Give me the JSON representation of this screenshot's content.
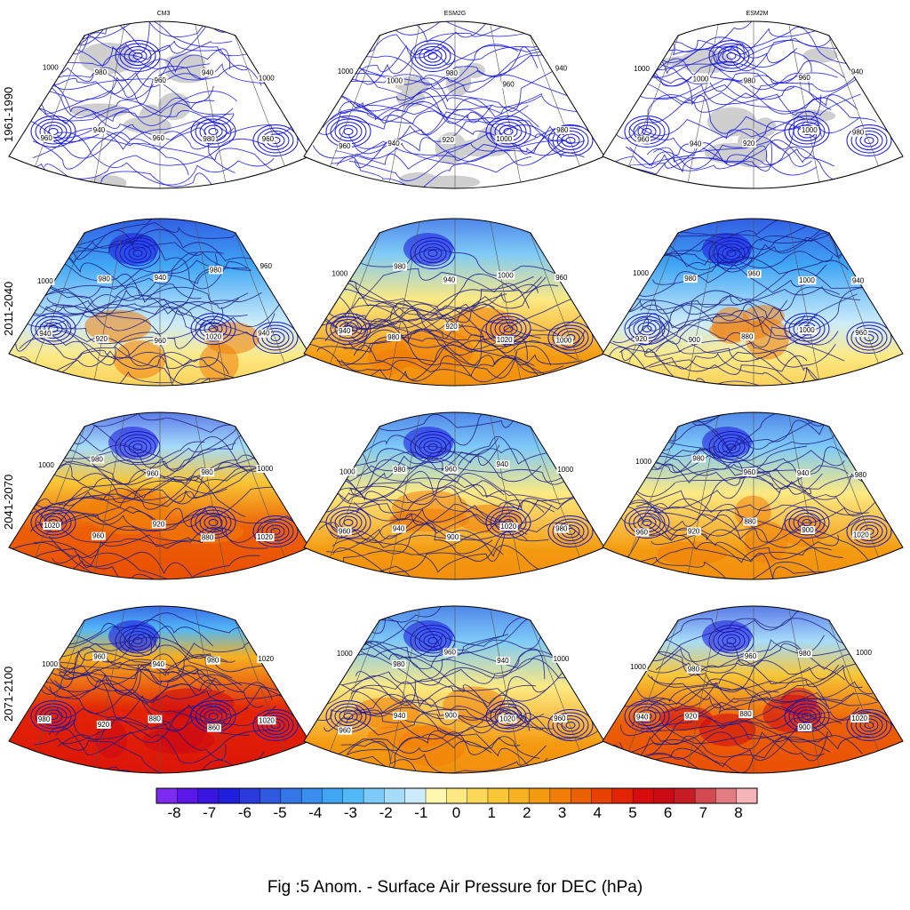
{
  "columns": [
    "CM3",
    "ESM2G",
    "ESM2M"
  ],
  "rows": [
    "1961-1990",
    "2011-2040",
    "2041-2070",
    "2071-2100"
  ],
  "colorbar": {
    "ticks": [
      "-8",
      "-7",
      "-6",
      "-5",
      "-4",
      "-3",
      "-2",
      "-1",
      "0",
      "1",
      "2",
      "3",
      "4",
      "5",
      "6",
      "7",
      "8"
    ],
    "colors": [
      "#7b2cf0",
      "#5a18e8",
      "#3a14e0",
      "#2020dc",
      "#2a3adc",
      "#2f5ae0",
      "#3576e6",
      "#3a8eee",
      "#40a6f4",
      "#52b8f6",
      "#7ecaf8",
      "#a6dcfa",
      "#ccecfb",
      "#fff7b0",
      "#fde982",
      "#fbd85a",
      "#f9c636",
      "#f6b020",
      "#f49a10",
      "#f07e08",
      "#ec6004",
      "#e84202",
      "#e22404",
      "#d80c0c",
      "#cc0a14",
      "#c81c24",
      "#d24a50",
      "#e07c82",
      "#f4b4b8"
    ],
    "values": [
      -8,
      -7,
      -6,
      -5,
      -4,
      -3,
      -2,
      -1,
      0,
      1,
      2,
      3,
      4,
      5,
      6,
      7,
      8
    ]
  },
  "contour_labels": {
    "r0c0": [
      "1000",
      "980",
      "960",
      "940",
      "1000",
      "960",
      "940",
      "960",
      "980",
      "960"
    ],
    "r0c1": [
      "1000",
      "1000",
      "980",
      "960",
      "940",
      "960",
      "940",
      "920",
      "1000",
      "980"
    ],
    "r0c2": [
      "1000",
      "1000",
      "980",
      "960",
      "940",
      "960",
      "940",
      "920",
      "1000",
      "980"
    ],
    "r1c0": [
      "1000",
      "980",
      "940",
      "980",
      "960",
      "940",
      "920",
      "960",
      "1020",
      "940"
    ],
    "r1c1": [
      "1000",
      "980",
      "940",
      "1000",
      "960",
      "940",
      "980",
      "920",
      "1020",
      "1000"
    ],
    "r1c2": [
      "1000",
      "980",
      "960",
      "1000",
      "940",
      "920",
      "900",
      "880",
      "1000",
      "960"
    ],
    "r2c0": [
      "1000",
      "980",
      "960",
      "980",
      "1000",
      "1020",
      "960",
      "920",
      "880",
      "1020"
    ],
    "r2c1": [
      "1000",
      "980",
      "960",
      "940",
      "1000",
      "960",
      "940",
      "900",
      "1020",
      "980"
    ],
    "r2c2": [
      "1000",
      "980",
      "960",
      "940",
      "980",
      "960",
      "920",
      "880",
      "900",
      "1020"
    ],
    "r3c0": [
      "1000",
      "960",
      "940",
      "980",
      "1020",
      "980",
      "920",
      "880",
      "860",
      "1020"
    ],
    "r3c1": [
      "1000",
      "980",
      "960",
      "940",
      "1000",
      "960",
      "940",
      "900",
      "1020",
      "960"
    ],
    "r3c2": [
      "1000",
      "980",
      "960",
      "980",
      "1000",
      "940",
      "920",
      "880",
      "900",
      "1020"
    ]
  },
  "caption": "Fig :5  Anom.  - Surface Air Pressure for DEC (hPa)"
}
